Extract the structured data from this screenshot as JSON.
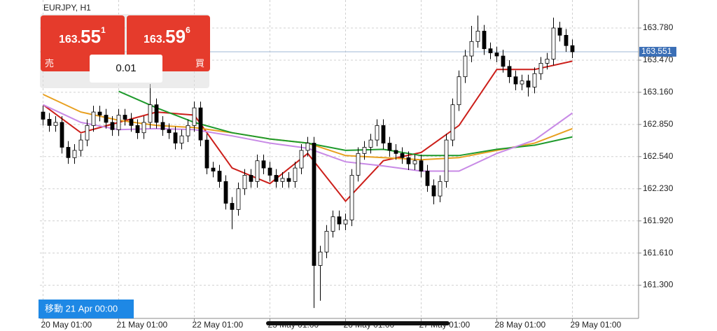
{
  "header": {
    "symbol": "EURJPY, H1"
  },
  "order_panel": {
    "sell": {
      "prefix": "163.",
      "main": "55",
      "sup": "1",
      "label": "売"
    },
    "buy": {
      "prefix": "163.",
      "main": "59",
      "sup": "6",
      "label": "買"
    },
    "lot": "0.01"
  },
  "scroll_label": "移動 21 Apr 00:00",
  "chart_data": {
    "type": "candlestick",
    "ylim": [
      160.98,
      164.05
    ],
    "xlim": [
      -0.5,
      94.5
    ],
    "yticks": [
      {
        "value": 163.78,
        "label": "163.780"
      },
      {
        "value": 163.47,
        "label": "163.470"
      },
      {
        "value": 163.16,
        "label": "163.160"
      },
      {
        "value": 162.85,
        "label": "162.850"
      },
      {
        "value": 162.54,
        "label": "162.540"
      },
      {
        "value": 162.23,
        "label": "162.230"
      },
      {
        "value": 161.92,
        "label": "161.920"
      },
      {
        "value": 161.61,
        "label": "161.610"
      },
      {
        "value": 161.3,
        "label": "161.300"
      }
    ],
    "xticks": [
      {
        "value": 0,
        "label": "20 May 01:00"
      },
      {
        "value": 12,
        "label": "21 May 01:00"
      },
      {
        "value": 24,
        "label": "22 May 01:00"
      },
      {
        "value": 36,
        "label": "23 May 01:00"
      },
      {
        "value": 48,
        "label": "26 May 01:00"
      },
      {
        "value": 60,
        "label": "27 May 01:00"
      },
      {
        "value": 72,
        "label": "28 May 01:00"
      },
      {
        "value": 84,
        "label": "29 May 01:00"
      }
    ],
    "grid": true,
    "current_price": 163.551,
    "current_color": "#3b6fb6",
    "up_color": "#ffffff",
    "down_color": "#000000",
    "open": [
      162.97,
      162.9,
      162.84,
      162.87,
      162.63,
      162.53,
      162.6,
      162.7,
      162.84,
      162.97,
      162.94,
      162.87,
      162.8,
      162.94,
      162.9,
      162.84,
      162.77,
      162.87,
      163.04,
      162.87,
      162.8,
      162.77,
      162.67,
      162.74,
      162.84,
      163.01,
      162.7,
      162.43,
      162.4,
      162.3,
      162.09,
      162.03,
      162.23,
      162.36,
      162.3,
      162.5,
      162.43,
      162.36,
      162.3,
      162.33,
      162.3,
      162.43,
      162.6,
      162.67,
      161.49,
      161.62,
      161.82,
      161.96,
      161.89,
      161.93,
      162.36,
      162.57,
      162.63,
      162.7,
      162.84,
      162.67,
      162.6,
      162.57,
      162.53,
      162.47,
      162.5,
      162.4,
      162.26,
      162.16,
      162.3,
      162.7,
      163.04,
      163.31,
      163.51,
      163.65,
      163.75,
      163.58,
      163.54,
      163.51,
      163.41,
      163.31,
      163.24,
      163.27,
      163.21,
      163.34,
      163.44,
      163.48,
      163.78,
      163.71,
      163.61
    ],
    "high": [
      163.03,
      162.96,
      162.93,
      162.93,
      162.69,
      162.66,
      162.76,
      162.9,
      163.03,
      163.03,
      163.0,
      162.93,
      163.0,
      163.0,
      162.96,
      162.9,
      162.93,
      163.24,
      163.1,
      162.93,
      162.86,
      162.83,
      162.8,
      162.9,
      163.07,
      163.07,
      162.76,
      162.49,
      162.46,
      162.36,
      162.15,
      162.29,
      162.42,
      162.42,
      162.56,
      162.56,
      162.49,
      162.42,
      162.39,
      162.39,
      162.49,
      162.66,
      162.73,
      162.73,
      161.68,
      161.88,
      162.02,
      162.02,
      161.99,
      162.42,
      162.63,
      162.69,
      162.76,
      162.9,
      162.9,
      162.73,
      162.66,
      162.63,
      162.59,
      162.56,
      162.56,
      162.46,
      162.32,
      162.36,
      162.76,
      163.1,
      163.37,
      163.57,
      163.8,
      163.9,
      163.81,
      163.64,
      163.6,
      163.57,
      163.47,
      163.37,
      163.33,
      163.33,
      163.4,
      163.5,
      163.54,
      163.88,
      163.84,
      163.77,
      163.67
    ],
    "low": [
      162.84,
      162.78,
      162.78,
      162.57,
      162.47,
      162.47,
      162.54,
      162.64,
      162.78,
      162.88,
      162.81,
      162.74,
      162.74,
      162.84,
      162.78,
      162.71,
      162.71,
      162.81,
      162.81,
      162.74,
      162.71,
      162.61,
      162.61,
      162.68,
      162.78,
      162.64,
      162.37,
      162.34,
      162.24,
      162.03,
      161.84,
      161.97,
      162.17,
      162.24,
      162.24,
      162.37,
      162.3,
      162.24,
      162.24,
      162.24,
      162.24,
      162.37,
      162.54,
      161.08,
      161.15,
      161.56,
      161.76,
      161.83,
      161.83,
      161.87,
      162.3,
      162.51,
      162.57,
      162.64,
      162.61,
      162.54,
      162.51,
      162.47,
      162.41,
      162.41,
      162.34,
      162.2,
      162.08,
      162.1,
      162.24,
      162.64,
      162.98,
      163.25,
      163.45,
      163.59,
      163.52,
      163.48,
      163.45,
      163.35,
      163.25,
      163.18,
      163.18,
      163.12,
      163.15,
      163.28,
      163.38,
      163.42,
      163.65,
      163.55,
      163.49
    ],
    "close": [
      162.9,
      162.84,
      162.87,
      162.63,
      162.53,
      162.6,
      162.7,
      162.84,
      162.97,
      162.94,
      162.87,
      162.8,
      162.94,
      162.9,
      162.84,
      162.77,
      162.87,
      163.04,
      162.87,
      162.8,
      162.77,
      162.67,
      162.74,
      162.84,
      163.01,
      162.7,
      162.43,
      162.4,
      162.3,
      162.09,
      162.03,
      162.23,
      162.36,
      162.3,
      162.5,
      162.43,
      162.36,
      162.3,
      162.33,
      162.3,
      162.43,
      162.6,
      162.67,
      161.49,
      161.62,
      161.82,
      161.96,
      161.89,
      161.93,
      162.36,
      162.57,
      162.63,
      162.7,
      162.84,
      162.67,
      162.6,
      162.57,
      162.53,
      162.47,
      162.5,
      162.4,
      162.26,
      162.16,
      162.3,
      162.7,
      163.04,
      163.31,
      163.51,
      163.65,
      163.75,
      163.58,
      163.54,
      163.51,
      163.41,
      163.31,
      163.24,
      163.27,
      163.21,
      163.34,
      163.44,
      163.48,
      163.78,
      163.71,
      163.61,
      163.55
    ],
    "ma": [
      {
        "color": "#cc1f1a",
        "x": [
          0,
          6,
          12,
          18,
          24,
          30,
          36,
          42,
          48,
          54,
          60,
          66,
          72,
          78,
          84
        ],
        "values": [
          163.04,
          162.77,
          162.87,
          162.97,
          162.94,
          162.43,
          162.28,
          162.57,
          162.11,
          162.5,
          162.58,
          162.84,
          163.38,
          163.38,
          163.46
        ]
      },
      {
        "color": "#e8a020",
        "x": [
          0,
          6,
          12,
          18,
          24,
          30,
          36,
          42,
          48,
          54,
          60,
          66,
          72,
          78,
          84
        ],
        "values": [
          163.14,
          162.97,
          162.89,
          162.84,
          162.82,
          162.77,
          162.71,
          162.67,
          162.55,
          162.53,
          162.51,
          162.53,
          162.6,
          162.67,
          162.81
        ]
      },
      {
        "color": "#1e9a2c",
        "x": [
          0,
          6,
          12,
          18,
          24,
          30,
          36,
          42,
          48,
          54,
          60,
          66,
          72,
          78,
          84
        ],
        "values": [
          null,
          null,
          163.17,
          163.01,
          162.87,
          162.77,
          162.71,
          162.67,
          162.6,
          162.61,
          162.55,
          162.55,
          162.61,
          162.65,
          162.73
        ]
      },
      {
        "color": "#c88ae6",
        "x": [
          0,
          6,
          12,
          18,
          24,
          30,
          36,
          42,
          48,
          54,
          60,
          66,
          72,
          78,
          84
        ],
        "values": [
          163.04,
          162.87,
          162.8,
          162.81,
          162.8,
          162.74,
          162.67,
          162.62,
          162.49,
          162.45,
          162.4,
          162.4,
          162.57,
          162.7,
          162.96
        ]
      }
    ]
  }
}
